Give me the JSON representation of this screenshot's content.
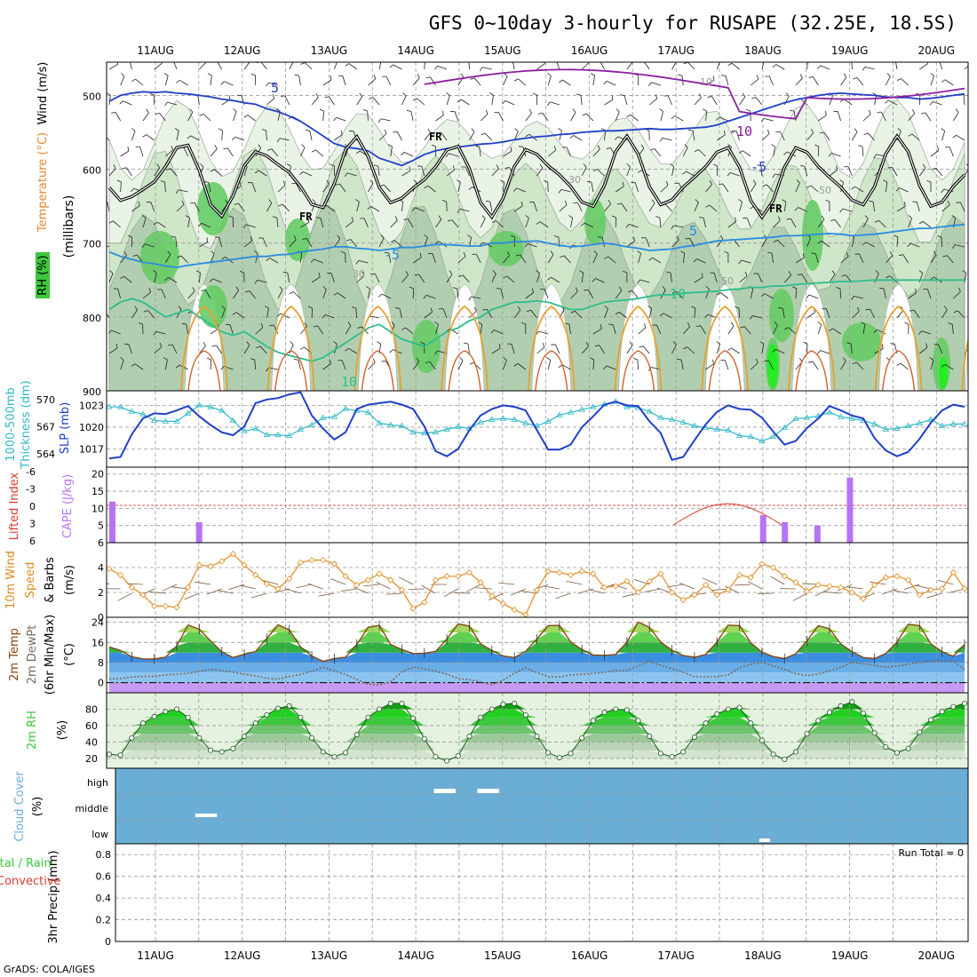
{
  "title": "GFS 0~10day 3-hourly for RUSAPE (32.25E, 18.5S)",
  "credit": "GrADS: COLA/IGES",
  "dates": [
    "11AUG",
    "12AUG",
    "13AUG",
    "14AUG",
    "15AUG",
    "16AUG",
    "17AUG",
    "18AUG",
    "19AUG",
    "20AUG"
  ],
  "colors": {
    "sfc_temp_line": "#8B4513",
    "dewpoint_line": "#7a6a5a",
    "wind_speed_line": "#e08a1e",
    "slp_line": "#1f3fc8",
    "thickness_line": "#30b8c8",
    "cape_bar": "#b873f5",
    "lifted_index_line": "#d83a2e",
    "rh_green": "#3cc83c",
    "cloud_cover_bg": "#6aaed6",
    "iso_5": "#1f3fc8",
    "iso_10": "#2dbe8b",
    "iso_neg": "#8a1ea0",
    "freezing": "#000000"
  },
  "chart_data": [
    {
      "panel": "upper_air",
      "type": "heatmap",
      "ylabel": [
        "RH (%)",
        "Temperature (°C)",
        "Wind (m/s)"
      ],
      "ylabel_units": "(millibars)",
      "yticks": [
        500,
        600,
        700,
        800,
        900
      ],
      "ylim": [
        455,
        900
      ],
      "isotherm_labels": [
        "5",
        "-10",
        "-5",
        "FR",
        "10"
      ],
      "contour_labels": [
        "10",
        "30",
        "50"
      ],
      "series": [
        {
          "name": "-5",
          "y_mb": [
            508,
            500,
            497,
            495,
            496,
            495,
            497,
            498,
            500,
            502,
            505,
            507,
            510,
            512,
            518,
            522,
            528,
            535,
            545,
            555,
            565,
            570,
            572,
            575,
            585,
            590,
            595,
            588,
            580,
            575,
            572,
            570,
            568,
            566,
            565,
            563,
            560,
            558,
            556,
            555,
            553,
            552,
            550,
            549,
            548,
            548,
            547,
            546,
            545,
            546,
            546,
            545,
            544,
            543,
            540,
            535,
            530,
            525,
            520,
            515,
            510,
            506,
            503,
            500,
            498,
            497,
            498,
            499,
            500,
            502,
            503,
            503,
            505,
            504,
            502,
            500,
            498
          ]
        },
        {
          "name": "5",
          "y_mb": [
            712,
            718,
            722,
            726,
            728,
            731,
            733,
            730,
            728,
            726,
            724,
            722,
            720,
            718,
            718,
            716,
            715,
            712,
            710,
            708,
            705,
            705,
            707,
            708,
            710,
            708,
            706,
            706,
            704,
            702,
            702,
            703,
            704,
            704,
            700,
            700,
            698,
            698,
            697,
            700,
            703,
            705,
            704,
            702,
            700,
            702,
            705,
            707,
            710,
            709,
            708,
            705,
            703,
            700,
            697,
            696,
            695,
            694,
            693,
            692,
            690,
            690,
            689,
            688,
            687,
            688,
            690,
            689,
            688,
            686,
            684,
            682,
            680,
            680,
            678,
            676,
            675
          ]
        },
        {
          "name": "10",
          "y_mb": [
            790,
            780,
            775,
            780,
            790,
            800,
            795,
            790,
            800,
            810,
            820,
            825,
            820,
            830,
            840,
            848,
            852,
            856,
            860,
            855,
            845,
            835,
            825,
            815,
            810,
            820,
            830,
            835,
            840,
            830,
            820,
            815,
            805,
            800,
            790,
            785,
            780,
            780,
            778,
            780,
            785,
            790,
            790,
            785,
            780,
            778,
            777,
            775,
            772,
            770,
            770,
            768,
            767,
            766,
            765,
            763,
            762,
            760,
            760,
            758,
            758,
            756,
            755,
            754,
            753,
            752,
            752,
            751,
            750,
            750,
            750,
            750,
            750,
            750,
            750,
            750,
            750
          ]
        }
      ]
    },
    {
      "panel": "slp_thickness",
      "type": "line",
      "ylabel": [
        "1000-500mb",
        "Thickness (dm)"
      ],
      "ylabel2": "SLP (mb)",
      "yticks_left": [
        564,
        567,
        570
      ],
      "yticks_right": [
        1017,
        1020,
        1023
      ],
      "series": [
        {
          "name": "SLP (mb)",
          "values": [
            1015.7,
            1015.9,
            1019.0,
            1021.2,
            1021.9,
            1021.8,
            1022.3,
            1022.9,
            1021.5,
            1020.3,
            1019.3,
            1018.9,
            1020.1,
            1023.3,
            1023.8,
            1024.0,
            1024.5,
            1024.8,
            1021.6,
            1019.8,
            1018.3,
            1019.3,
            1022.5,
            1023.1,
            1023.3,
            1023.5,
            1023.1,
            1022.5,
            1020.1,
            1016.7,
            1016.0,
            1017.0,
            1019.6,
            1021.6,
            1022.5,
            1023.0,
            1022.8,
            1022.3,
            1019.6,
            1016.9,
            1016.9,
            1017.6,
            1020.0,
            1021.5,
            1023.1,
            1023.5,
            1023.0,
            1022.9,
            1020.8,
            1019.2,
            1015.5,
            1015.9,
            1018.2,
            1020.4,
            1022.1,
            1023.0,
            1022.5,
            1022.4,
            1021.3,
            1019.4,
            1017.6,
            1018.1,
            1019.9,
            1021.2,
            1022.9,
            1022.3,
            1021.6,
            1021.2,
            1018.5,
            1016.8,
            1016.0,
            1016.6,
            1018.4,
            1020.6,
            1022.3,
            1023.1,
            1022.8
          ]
        },
        {
          "name": "Thickness (dm)",
          "values": [
            569.2,
            569.2,
            568.7,
            568.4,
            567.7,
            567.6,
            567.6,
            568.5,
            569.4,
            569.2,
            568.8,
            567.7,
            566.5,
            566.8,
            566.1,
            566.1,
            566.0,
            566.7,
            567.2,
            568.0,
            568.1,
            569.0,
            568.8,
            568.6,
            567.4,
            567.2,
            567.1,
            566.4,
            566.3,
            566.4,
            566.7,
            567.0,
            566.8,
            567.5,
            567.8,
            567.9,
            567.8,
            567.4,
            567.1,
            567.6,
            568.3,
            568.6,
            568.9,
            569.2,
            569.5,
            569.8,
            569.2,
            569.1,
            568.7,
            568.0,
            567.8,
            567.5,
            567.1,
            566.9,
            566.7,
            566.6,
            566.0,
            565.9,
            565.4,
            565.9,
            566.9,
            567.9,
            568.0,
            568.2,
            568.6,
            568.1,
            567.9,
            567.7,
            567.3,
            566.7,
            566.8,
            567.1,
            567.4,
            567.8,
            567.1,
            567.3,
            567.3
          ]
        }
      ]
    },
    {
      "panel": "cape_lifted_index",
      "type": "bar",
      "ylabel": "Lifted Index",
      "ylabel2": "CAPE (J/kg)",
      "yticks_left": [
        "-6",
        "-3",
        "0",
        "3",
        "6"
      ],
      "yticks_right": [
        5,
        10,
        15,
        20
      ],
      "cape_bars": [
        {
          "x_day": 0.0,
          "value": 12
        },
        {
          "x_day": 1.0,
          "value": 6
        },
        {
          "x_day": 7.5,
          "value": 8
        },
        {
          "x_day": 7.75,
          "value": 6
        },
        {
          "x_day": 8.125,
          "value": 5
        },
        {
          "x_day": 8.5,
          "value": 19
        }
      ]
    },
    {
      "panel": "wind_10m",
      "type": "line",
      "ylabel": [
        "10m Wind",
        "Speed",
        "& Barbs"
      ],
      "ylabel_units": "(m/s)",
      "yticks": [
        0,
        2,
        4,
        6
      ],
      "ylim": [
        0,
        6
      ],
      "series": [
        {
          "name": "Speed (m/s)",
          "values": [
            3.9,
            3.4,
            2.4,
            1.8,
            0.9,
            0.9,
            0.8,
            2.4,
            4.2,
            4.1,
            4.5,
            5.1,
            4.2,
            3.4,
            2.7,
            2.3,
            3.1,
            4.4,
            4.6,
            4.6,
            4.3,
            3.3,
            2.6,
            3.0,
            3.5,
            3.0,
            2.2,
            0.7,
            1.2,
            3.0,
            3.3,
            3.3,
            3.6,
            2.8,
            1.7,
            1.1,
            0.6,
            0.2,
            2.2,
            3.7,
            3.6,
            3.4,
            3.7,
            3.5,
            2.4,
            2.5,
            2.9,
            2.0,
            2.9,
            3.5,
            2.0,
            1.4,
            1.8,
            2.6,
            1.8,
            2.2,
            3.4,
            3.2,
            4.3,
            4.0,
            3.3,
            2.8,
            2.1,
            2.6,
            2.5,
            2.4,
            2.0,
            1.5,
            2.6,
            3.2,
            3.3,
            3.0,
            1.8,
            2.2,
            2.3,
            3.6,
            2.3
          ]
        }
      ]
    },
    {
      "panel": "temp_2m",
      "type": "area",
      "ylabel": [
        "2m Temp",
        "2m DewPt",
        "(6hr Min/Max)"
      ],
      "ylabel_units": "(°C)",
      "yticks": [
        0,
        8,
        16,
        24
      ],
      "series": [
        {
          "name": "2m Temp (°C)",
          "values": [
            14.2,
            12.8,
            10.3,
            9.5,
            9.4,
            10.1,
            14.6,
            22.9,
            21.3,
            16.6,
            12.3,
            10.0,
            11.3,
            12.4,
            17.5,
            23.0,
            21.0,
            14.2,
            10.6,
            8.5,
            9.6,
            10.1,
            15.2,
            22.0,
            22.8,
            15.2,
            13.2,
            11.6,
            11.7,
            12.4,
            17.3,
            23.4,
            22.5,
            15.4,
            12.8,
            10.6,
            10.0,
            12.5,
            17.3,
            22.7,
            22.8,
            16.2,
            13.2,
            11.0,
            10.9,
            11.2,
            16.1,
            24.1,
            22.0,
            16.1,
            12.9,
            10.8,
            10.1,
            11.2,
            16.1,
            22.9,
            22.7,
            15.9,
            12.1,
            10.4,
            9.6,
            11.5,
            16.6,
            22.7,
            21.4,
            15.4,
            12.3,
            10.0,
            9.6,
            11.6,
            16.1,
            23.2,
            22.7,
            15.5,
            12.3,
            10.5,
            15.2
          ]
        },
        {
          "name": "2m DewPt (°C)",
          "values": [
            1.5,
            1.7,
            2.2,
            2.5,
            2.5,
            3.1,
            3.4,
            3.7,
            4.5,
            5.3,
            4.9,
            4.2,
            3.4,
            2.7,
            1.8,
            1.4,
            2.5,
            3.3,
            4.6,
            6.1,
            4.7,
            3.3,
            1.3,
            -0.6,
            -0.9,
            0.3,
            4.3,
            6.2,
            5.5,
            4.5,
            3.4,
            1.7,
            1.2,
            0.3,
            -0.9,
            1.0,
            3.8,
            5.9,
            4.0,
            2.4,
            2.3,
            3.1,
            3.4,
            3.7,
            4.2,
            4.8,
            4.8,
            6.7,
            8.5,
            6.9,
            5.6,
            4.2,
            2.4,
            2.3,
            2.4,
            3.1,
            6.0,
            7.3,
            8.1,
            6.6,
            5.4,
            3.6,
            2.8,
            3.5,
            4.7,
            6.2,
            8.1,
            7.5,
            6.9,
            6.2,
            6.6,
            7.4,
            8.0,
            8.6,
            8.9,
            8.6,
            5.3
          ]
        }
      ]
    },
    {
      "panel": "rh_2m",
      "type": "area",
      "ylabel": "2m RH",
      "ylabel_units": "(%)",
      "yticks": [
        20,
        40,
        60,
        80
      ],
      "series": [
        {
          "name": "2m RH (%)",
          "values": [
            25,
            24,
            45,
            63,
            71,
            77,
            80,
            70,
            45,
            30,
            28,
            32,
            47,
            63,
            73,
            81,
            84,
            70,
            45,
            28,
            22,
            27,
            49,
            70,
            80,
            87,
            87,
            69,
            44,
            22,
            17,
            23,
            47,
            70,
            80,
            86,
            87,
            73,
            47,
            27,
            21,
            26,
            45,
            66,
            76,
            80,
            79,
            66,
            47,
            26,
            22,
            28,
            46,
            63,
            74,
            80,
            82,
            63,
            42,
            25,
            19,
            28,
            50,
            66,
            76,
            84,
            89,
            75,
            51,
            34,
            27,
            32,
            52,
            67,
            77,
            83,
            87
          ]
        }
      ]
    },
    {
      "panel": "cloud_cover",
      "type": "bar",
      "ylabel": [
        "Cloud Cover",
        "(%)"
      ],
      "yticks": [
        "high",
        "middle",
        "low"
      ],
      "segments": [
        {
          "level": "middle",
          "x_day_start": 0.5,
          "x_day_end": 0.75
        },
        {
          "level": "high",
          "x_day_start": 3.25,
          "x_day_end": 3.5
        },
        {
          "level": "high",
          "x_day_start": 3.75,
          "x_day_end": 4.0
        },
        {
          "level": "low",
          "x_day_start": 7.0,
          "x_day_end": 7.125
        }
      ]
    },
    {
      "panel": "precip_3hr",
      "type": "bar",
      "ylabel": "3hr Precip (mm)",
      "ylabel_left": [
        "Total / Rain",
        "Convective"
      ],
      "yticks": [
        "0",
        "0.2",
        "0.4",
        "0.6",
        "0.8"
      ],
      "ylim": [
        0,
        0.9
      ],
      "annotation": "Run Total = 0",
      "values": []
    }
  ]
}
